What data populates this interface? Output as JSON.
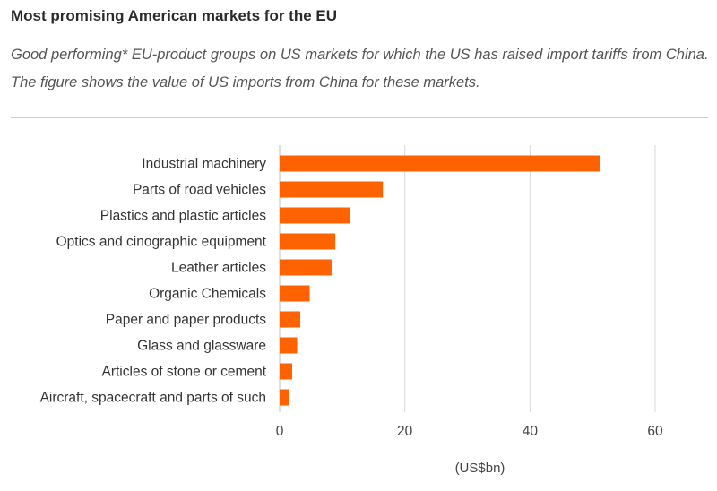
{
  "header": {
    "title": "Most promising American markets for the EU",
    "subtitle": "Good performing* EU-product groups on US markets for which the US has raised import tariffs from China. The figure shows the value of US imports from China for these markets."
  },
  "colors": {
    "bar": "#FF6200",
    "grid": "#d9d9d9"
  },
  "chart_data": {
    "type": "bar",
    "orientation": "horizontal",
    "categories": [
      "Industrial machinery",
      "Parts of road vehicles",
      "Plastics and plastic articles",
      "Optics and cinographic equipment",
      "Leather articles",
      "Organic Chemicals",
      "Paper and paper products",
      "Glass and glassware",
      "Articles of stone or cement",
      "Aircraft, spacecraft and parts of such"
    ],
    "values": [
      51.2,
      16.5,
      11.3,
      8.9,
      8.3,
      4.8,
      3.3,
      2.8,
      2.0,
      1.5
    ],
    "xlabel": "(US$bn)",
    "xlim": [
      0,
      60
    ],
    "xticks": [
      0,
      20,
      40,
      60
    ],
    "grid": true
  }
}
